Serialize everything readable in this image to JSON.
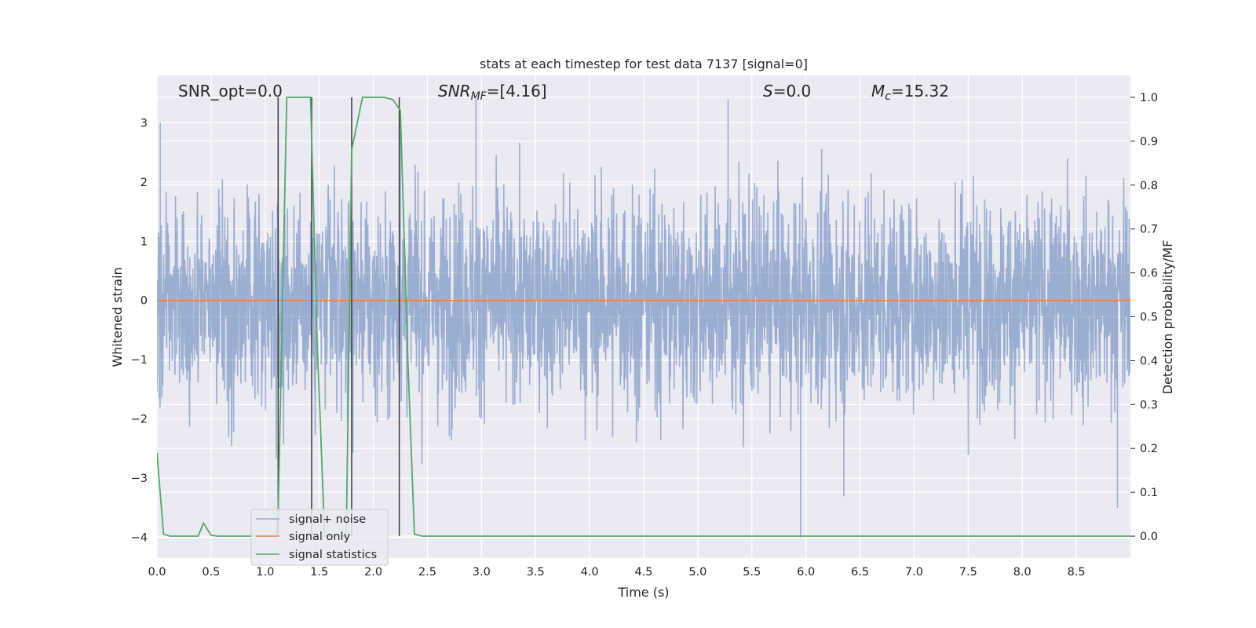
{
  "chart_data": {
    "type": "line",
    "title": "stats at each timestep for test data 7137 [signal=0]",
    "xlabel": "Time (s)",
    "ylabel": "Whitened strain",
    "ylabel_right": "Detection probability/MF",
    "xlim": [
      0.0,
      9.0
    ],
    "ylim": [
      -4.35,
      3.8
    ],
    "ylim_right": [
      -0.05,
      1.05
    ],
    "x_ticks": [
      "0.0",
      "0.5",
      "1.0",
      "1.5",
      "2.0",
      "2.5",
      "3.0",
      "3.5",
      "4.0",
      "4.5",
      "5.0",
      "5.5",
      "6.0",
      "6.5",
      "7.0",
      "7.5",
      "8.0",
      "8.5"
    ],
    "y_ticks": [
      "3",
      "2",
      "1",
      "0",
      "−1",
      "−2",
      "−3",
      "−4"
    ],
    "y_ticks_right": [
      "1.0",
      "0.9",
      "0.8",
      "0.7",
      "0.6",
      "0.5",
      "0.4",
      "0.3",
      "0.2",
      "0.1",
      "0.0"
    ],
    "grid": true,
    "legend_position": "lower-left",
    "annotations": {
      "snr_opt": "SNR_opt=0.0",
      "snr_mf_base": "SNR",
      "snr_mf_sub": "MF",
      "snr_mf_value": "=[4.16]",
      "s_symbol": "S",
      "s_value": "=0.0",
      "mc_symbol": "M",
      "mc_sub": "c",
      "mc_value": "=15.32"
    },
    "series": [
      {
        "name": "signal+ noise",
        "color": "#4c72b0",
        "axis": "left",
        "note_envelope": "noise envelope approx -2 to 2 with spikes to about 3.5 and -4",
        "spike_points": [
          [
            0.03,
            3.0
          ],
          [
            1.12,
            2.7
          ],
          [
            2.25,
            3.2
          ],
          [
            2.95,
            3.4
          ],
          [
            5.28,
            3.4
          ],
          [
            5.95,
            -4.0
          ],
          [
            6.35,
            -3.3
          ],
          [
            8.88,
            -3.5
          ]
        ]
      },
      {
        "name": "signal only",
        "color": "#dd8452",
        "axis": "left",
        "x": [
          0.0,
          9.0
        ],
        "y": [
          0.0,
          0.0
        ]
      },
      {
        "name": "signal statistics",
        "color": "#55a868",
        "axis": "right",
        "x": [
          0.0,
          0.06,
          0.12,
          0.38,
          0.43,
          0.5,
          0.56,
          1.1,
          1.12,
          1.2,
          1.3,
          1.42,
          1.48,
          1.55,
          1.75,
          1.8,
          1.9,
          2.0,
          2.1,
          2.18,
          2.25,
          2.32,
          2.38,
          2.45,
          9.0
        ],
        "y": [
          0.19,
          0.005,
          0.0,
          0.0,
          0.03,
          0.002,
          0.0,
          0.0,
          0.05,
          1.0,
          1.0,
          1.0,
          0.45,
          0.0,
          0.0,
          0.88,
          1.0,
          1.0,
          1.0,
          0.995,
          0.97,
          0.4,
          0.005,
          0.0,
          0.0
        ]
      }
    ],
    "vertical_lines_x": [
      1.12,
      1.43,
      1.8,
      2.24
    ]
  },
  "legend": {
    "items": [
      {
        "label": "signal+ noise",
        "color": "#4c72b0"
      },
      {
        "label": "signal only",
        "color": "#dd8452"
      },
      {
        "label": "signal statistics",
        "color": "#55a868"
      }
    ]
  },
  "colors": {
    "plot_background": "#eaeaf2",
    "grid": "#ffffff",
    "vertical_line": "#3a3a3a"
  }
}
